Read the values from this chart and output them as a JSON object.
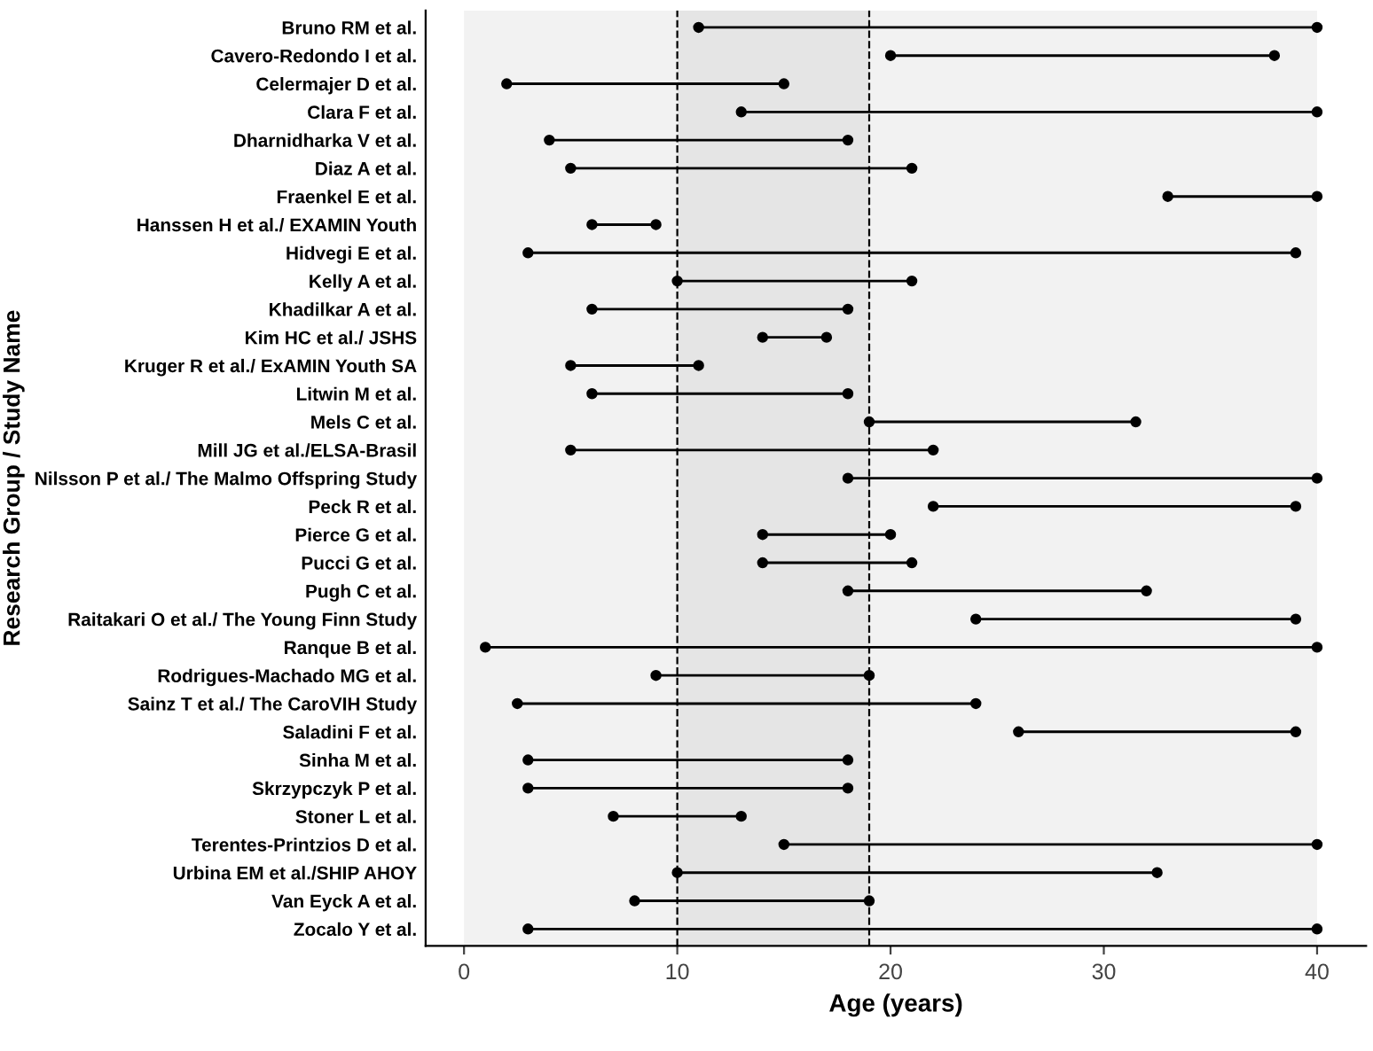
{
  "chart_data": {
    "type": "bar",
    "orientation": "horizontal",
    "marker": "circle",
    "xlabel": "Age (years)",
    "ylabel": "Research Group / Study Name",
    "categories": [
      "Bruno RM et al.",
      "Cavero-Redondo I et al.",
      "Celermajer D et al.",
      "Clara F et al.",
      "Dharnidharka V et al.",
      "Diaz A et al.",
      "Fraenkel E et al.",
      "Hanssen H et al./ EXAMIN Youth",
      "Hidvegi E et al.",
      "Kelly A et al.",
      "Khadilkar A et al.",
      "Kim HC et al./ JSHS",
      "Kruger R et al./ ExAMIN Youth SA",
      "Litwin M et al.",
      "Mels C et al.",
      "Mill JG et al./ELSA-Brasil",
      "Nilsson P et al./ The Malmo Offspring Study",
      "Peck R et al.",
      "Pierce G et al.",
      "Pucci G et al.",
      "Pugh C et al.",
      "Raitakari O et al./ The Young Finn Study",
      "Ranque B et al.",
      "Rodrigues-Machado MG et al.",
      "Sainz T et al./ The CaroVIH Study",
      "Saladini F et al.",
      "Sinha M et al.",
      "Skrzypczyk P et al.",
      "Stoner L et al.",
      "Terentes-Printzios D et al.",
      "Urbina EM et al./SHIP AHOY",
      "Van Eyck A et al.",
      "Zocalo Y et al."
    ],
    "series": [
      {
        "color": "#000000",
        "base": [
          11,
          20,
          2,
          13,
          4,
          5,
          33,
          6,
          3,
          10,
          6,
          14,
          5,
          6,
          19,
          5,
          18,
          22,
          14,
          14,
          18,
          24,
          1,
          9,
          2.5,
          26,
          3,
          3,
          7,
          15,
          10,
          8,
          3
        ],
        "values": [
          29,
          18,
          13,
          27,
          14,
          16,
          7,
          3,
          36,
          11,
          12,
          3,
          6,
          12,
          12.5,
          17,
          22,
          17,
          6,
          7,
          14,
          15,
          39,
          10,
          21.5,
          13,
          15,
          15,
          6,
          25,
          22.5,
          11,
          37
        ]
      },
      {
        "type": "scatter",
        "color": "#000000",
        "values": [
          11,
          20,
          2,
          13,
          4,
          5,
          33,
          6,
          3,
          10,
          6,
          14,
          5,
          6,
          19,
          5,
          18,
          22,
          14,
          14,
          18,
          24,
          1,
          9,
          2.5,
          26,
          3,
          3,
          7,
          15,
          10,
          8,
          3
        ]
      },
      {
        "type": "scatter",
        "color": "#000000",
        "values": [
          40,
          38,
          15,
          40,
          18,
          21,
          40,
          9,
          39,
          21,
          18,
          17,
          11,
          18,
          31.5,
          22,
          40,
          39,
          20,
          21,
          32,
          39,
          40,
          19,
          24,
          39,
          18,
          18,
          13,
          40,
          32.5,
          19,
          40
        ]
      }
    ],
    "xlim": [
      -1.8,
      42.3
    ],
    "xticks": [
      0,
      10,
      20,
      30,
      40
    ],
    "bands": [
      {
        "axis": "x",
        "from": 0,
        "to": 10,
        "color": "#f2f2f2"
      },
      {
        "axis": "x",
        "from": 10,
        "to": 19,
        "color": "#e5e5e5"
      },
      {
        "axis": "x",
        "from": 19,
        "to": 40,
        "color": "#f2f2f2"
      }
    ],
    "ref_lines": [
      {
        "axis": "x",
        "value": 10,
        "line_style": "dashed"
      },
      {
        "axis": "x",
        "value": 19,
        "line_style": "dashed"
      }
    ]
  }
}
